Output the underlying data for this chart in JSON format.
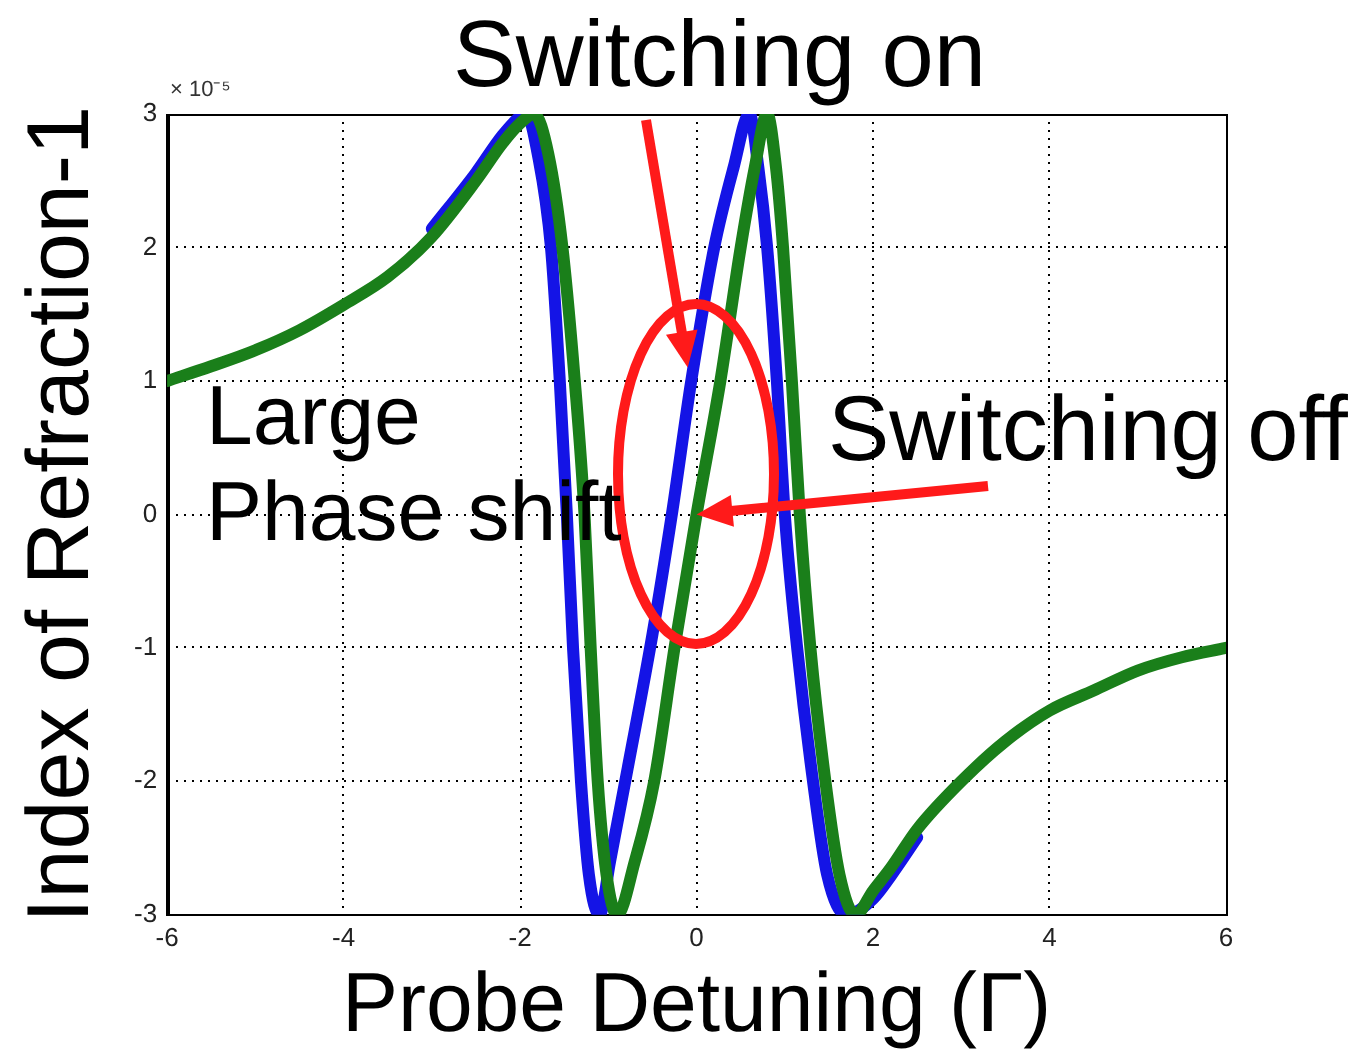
{
  "chart_data": {
    "type": "line",
    "xlabel": "Probe Detuning (Γ)",
    "ylabel": "Index of Refraction-1",
    "annotations": [
      "× 10⁻⁵",
      {
        "text": "Switching on",
        "x": -0.1,
        "y": 1.1
      },
      {
        "text": "Switching off",
        "x": 0,
        "y": 0
      },
      "Large Phase shift"
    ],
    "series": [
      {
        "color": "#1414e6",
        "x": [
          -3,
          -2.5,
          -2.2,
          -2.0,
          -1.93,
          -1.8,
          -1.65,
          -1.55,
          -1.47,
          -1.4,
          -1.31,
          -1.22,
          -1.1,
          -0.98,
          -0.78,
          -0.5,
          -0.28,
          -0.06,
          0.2,
          0.42,
          0.6,
          0.7,
          0.8,
          0.91,
          1.0,
          1.14,
          1.32,
          1.48,
          1.7,
          2.0,
          2.2,
          2.5
        ],
        "values": [
          2.14,
          2.56,
          2.84,
          2.98,
          3.0,
          2.7,
          2.0,
          1.0,
          0,
          -1.0,
          -2.0,
          -2.7,
          -3.0,
          -2.6,
          -1.9,
          -0.9,
          0,
          1.0,
          2.0,
          2.6,
          3.0,
          2.6,
          2.0,
          1.0,
          0,
          -1.0,
          -2.0,
          -2.7,
          -3.0,
          -2.88,
          -2.71,
          -2.42
        ]
      },
      {
        "color": "#1a7f1a",
        "x": [
          -6,
          -5.5,
          -5,
          -4.5,
          -4,
          -3.5,
          -3,
          -2.5,
          -2.2,
          -2.0,
          -1.84,
          -1.68,
          -1.52,
          -1.38,
          -1.27,
          -1.2,
          -1.12,
          -1.02,
          -0.9,
          -0.7,
          -0.48,
          -0.25,
          0,
          0.27,
          0.5,
          0.66,
          0.8,
          0.9,
          0.98,
          1.08,
          1.17,
          1.29,
          1.46,
          1.62,
          1.8,
          2.0,
          2.2,
          2.5,
          3,
          3.5,
          4,
          4.5,
          5,
          5.5,
          6
        ],
        "values": [
          1.0,
          1.11,
          1.23,
          1.38,
          1.57,
          1.78,
          2.08,
          2.5,
          2.78,
          2.93,
          3.0,
          2.7,
          2.0,
          1.0,
          0,
          -1.0,
          -2.0,
          -2.7,
          -3.0,
          -2.6,
          -2.0,
          -1.0,
          0,
          1.0,
          2.0,
          2.6,
          3.0,
          2.6,
          2.0,
          1.0,
          0,
          -1.0,
          -2.0,
          -2.7,
          -3.0,
          -2.82,
          -2.65,
          -2.36,
          -2.0,
          -1.7,
          -1.47,
          -1.32,
          -1.17,
          -1.07,
          -1.0
        ]
      }
    ],
    "xlim": [
      -6,
      6
    ],
    "xticks": [
      -6,
      -4,
      -2,
      0,
      2,
      4,
      6
    ],
    "ylim": [
      -3,
      3
    ],
    "yticks": [
      -3,
      -2,
      -1,
      0,
      1,
      2,
      3
    ],
    "grid": true,
    "line_style": "solid"
  }
}
